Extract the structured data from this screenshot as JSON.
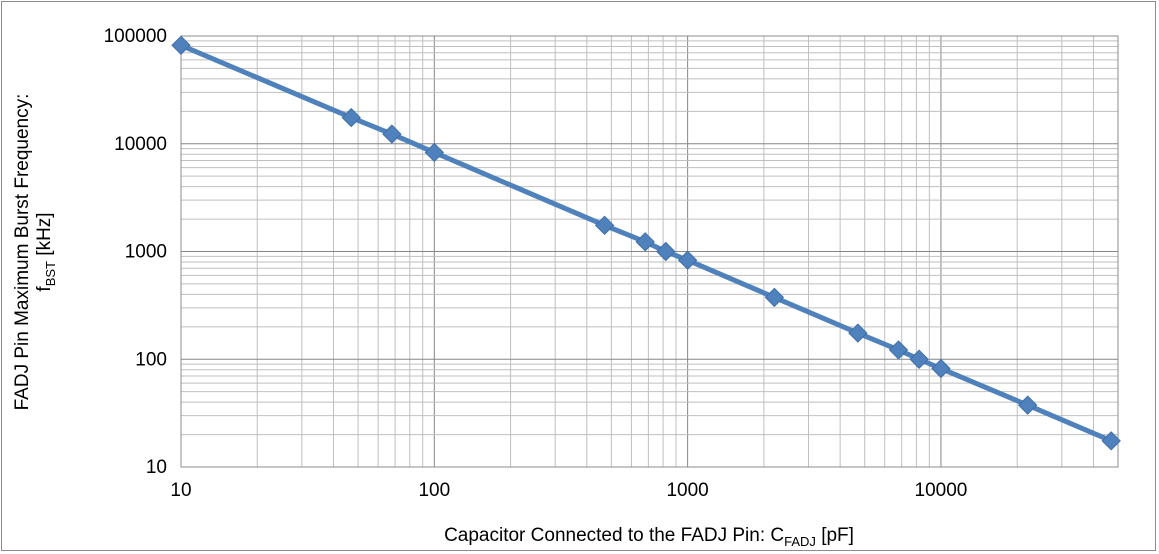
{
  "chart_data": {
    "type": "line",
    "x_scale": "log",
    "y_scale": "log",
    "xlim": [
      10,
      50000
    ],
    "ylim": [
      10,
      100000
    ],
    "grid": true,
    "legend": "none",
    "x_ticks": [
      "10",
      "100",
      "1000",
      "10000"
    ],
    "y_ticks": [
      "10",
      "100",
      "1000",
      "10000",
      "100000"
    ],
    "xlabel": {
      "main": "Capacitor Connected to the FADJ  Pin: C",
      "subscript": "FADJ",
      "tail": "  [pF]"
    },
    "ylabel": {
      "line1": "FADJ Pin  Maximum Burst Frequency:",
      "line2_main": "f",
      "line2_subscript": "BST",
      "line2_tail": " [kHz]"
    },
    "series": [
      {
        "color": "#4f81bd",
        "marker": "diamond",
        "points": [
          {
            "x": 10,
            "y": 82000
          },
          {
            "x": 47,
            "y": 17500
          },
          {
            "x": 68,
            "y": 12300
          },
          {
            "x": 100,
            "y": 8300
          },
          {
            "x": 470,
            "y": 1750
          },
          {
            "x": 680,
            "y": 1230
          },
          {
            "x": 820,
            "y": 1000
          },
          {
            "x": 1000,
            "y": 830
          },
          {
            "x": 2200,
            "y": 375
          },
          {
            "x": 4700,
            "y": 175
          },
          {
            "x": 6800,
            "y": 122
          },
          {
            "x": 8200,
            "y": 100
          },
          {
            "x": 10000,
            "y": 82
          },
          {
            "x": 22000,
            "y": 37.5
          },
          {
            "x": 47000,
            "y": 17.5
          }
        ]
      }
    ]
  }
}
